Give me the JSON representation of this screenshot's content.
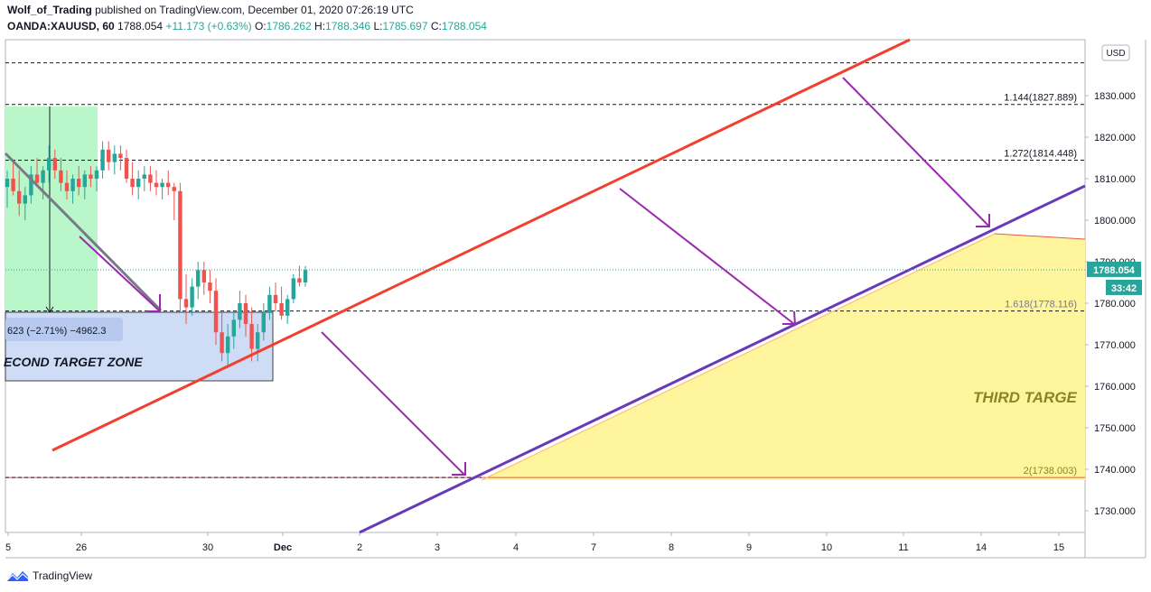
{
  "header": {
    "author": "Wolf_of_Trading",
    "published_text": "published on TradingView.com, December 01, 2020 07:26:19 UTC",
    "symbol": "OANDA:XAUUSD, 60",
    "price": "1788.054",
    "change": "+11.173 (+0.63%)",
    "o_label": "O:",
    "o_value": "1786.262",
    "h_label": "H:",
    "h_value": "1788.346",
    "l_label": "L:",
    "l_value": "1785.697",
    "c_label": "C:",
    "c_value": "1788.054"
  },
  "footer": {
    "brand": "TradingView"
  },
  "colors": {
    "up": "#26a69a",
    "down": "#ef5350",
    "red_line": "#f23f2f",
    "purple_line": "#673ab7",
    "arrow": "#9c27b0",
    "green_zone": "#b9f6ca",
    "blue_zone": "#cfdcf6",
    "yellow_zone": "#fff59d",
    "price_tag": "#26a69a"
  },
  "chart_data": {
    "type": "candlestick",
    "currency": "USD",
    "y_min": 1725,
    "y_max": 1840,
    "y_ticks": [
      "1730.000",
      "1740.000",
      "1750.000",
      "1760.000",
      "1770.000",
      "1780.000",
      "1790.000",
      "1800.000",
      "1810.000",
      "1820.000",
      "1830.000"
    ],
    "y_tick_values": [
      1730,
      1740,
      1750,
      1760,
      1770,
      1780,
      1790,
      1800,
      1810,
      1820,
      1830
    ],
    "x_ticks": [
      "5",
      "26",
      "30",
      "Dec",
      "2",
      "3",
      "4",
      "7",
      "8",
      "9",
      "10",
      "11",
      "14",
      "15"
    ],
    "last_price": "1788.054",
    "last_price_value": 1788.054,
    "countdown": "33:42",
    "fib_levels": [
      {
        "label": "1.144(1827.889)",
        "value": 1827.889
      },
      {
        "label": "1.272(1814.448)",
        "value": 1814.448
      },
      {
        "label": "1.618(1778.116)",
        "value": 1778.116
      },
      {
        "label": "2(1738.003)",
        "value": 1738.003
      }
    ],
    "fib_top_level": 1837.9,
    "annotations": {
      "measure_label": "623 (−2.71%) −4962.3",
      "second_zone": "ECOND TARGET ZONE",
      "third_zone": "THIRD TARGE"
    },
    "candles": [
      [
        1808,
        1812,
        1803,
        1810
      ],
      [
        1810,
        1814,
        1806,
        1807
      ],
      [
        1807,
        1812,
        1801,
        1804
      ],
      [
        1804,
        1808,
        1800,
        1806
      ],
      [
        1806,
        1813,
        1804,
        1811
      ],
      [
        1811,
        1815,
        1808,
        1809
      ],
      [
        1809,
        1813,
        1805,
        1812
      ],
      [
        1812,
        1818,
        1809,
        1815
      ],
      [
        1815,
        1817,
        1810,
        1812
      ],
      [
        1812,
        1815,
        1807,
        1809
      ],
      [
        1809,
        1812,
        1805,
        1807
      ],
      [
        1807,
        1811,
        1804,
        1810
      ],
      [
        1810,
        1813,
        1806,
        1808
      ],
      [
        1808,
        1812,
        1805,
        1811
      ],
      [
        1811,
        1813,
        1808,
        1810
      ],
      [
        1810,
        1813,
        1807,
        1812
      ],
      [
        1812,
        1819,
        1810,
        1817
      ],
      [
        1817,
        1819,
        1812,
        1814
      ],
      [
        1814,
        1818,
        1811,
        1816
      ],
      [
        1816,
        1818,
        1812,
        1815
      ],
      [
        1815,
        1817,
        1809,
        1810
      ],
      [
        1810,
        1814,
        1806,
        1808
      ],
      [
        1808,
        1812,
        1805,
        1810
      ],
      [
        1810,
        1813,
        1807,
        1811
      ],
      [
        1811,
        1813,
        1807,
        1809
      ],
      [
        1809,
        1812,
        1806,
        1808
      ],
      [
        1808,
        1810,
        1805,
        1809
      ],
      [
        1809,
        1812,
        1806,
        1808
      ],
      [
        1808,
        1809,
        1800,
        1807
      ],
      [
        1807,
        1809,
        1778,
        1781
      ],
      [
        1781,
        1787,
        1775,
        1779
      ],
      [
        1779,
        1786,
        1777,
        1784
      ],
      [
        1784,
        1790,
        1781,
        1788
      ],
      [
        1788,
        1790,
        1782,
        1785
      ],
      [
        1785,
        1788,
        1780,
        1783
      ],
      [
        1783,
        1786,
        1770,
        1773
      ],
      [
        1773,
        1778,
        1766,
        1768
      ],
      [
        1768,
        1775,
        1765,
        1772
      ],
      [
        1772,
        1778,
        1769,
        1776
      ],
      [
        1776,
        1783,
        1774,
        1780
      ],
      [
        1780,
        1782,
        1772,
        1775
      ],
      [
        1775,
        1779,
        1766,
        1769
      ],
      [
        1769,
        1775,
        1766,
        1773
      ],
      [
        1773,
        1780,
        1771,
        1778
      ],
      [
        1778,
        1784,
        1776,
        1782
      ],
      [
        1782,
        1785,
        1778,
        1780
      ],
      [
        1780,
        1784,
        1776,
        1777
      ],
      [
        1777,
        1782,
        1775,
        1781
      ],
      [
        1781,
        1787,
        1780,
        1786
      ],
      [
        1786,
        1789,
        1784,
        1785
      ],
      [
        1785,
        1789,
        1784,
        1788
      ]
    ]
  }
}
